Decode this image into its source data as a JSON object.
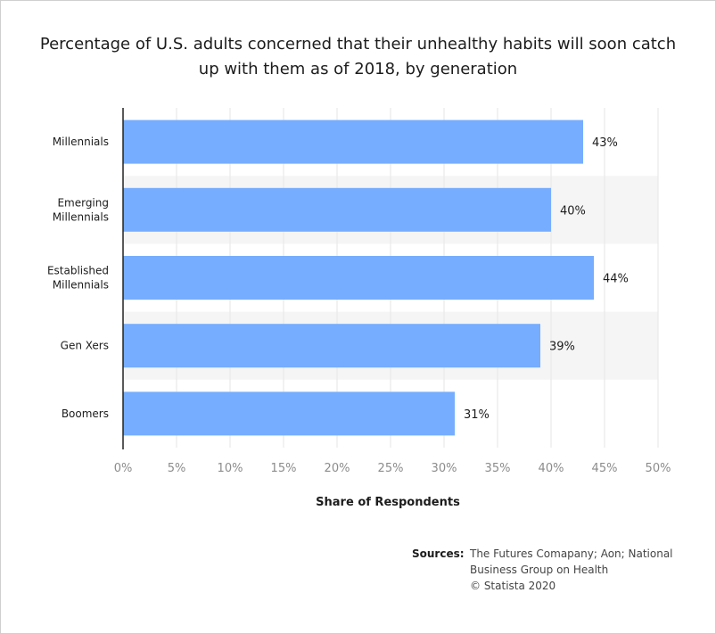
{
  "chart_data": {
    "type": "bar",
    "orientation": "horizontal",
    "title": "Percentage of U.S. adults concerned that their unhealthy habits will soon catch up with them as of 2018, by generation",
    "categories": [
      [
        "Millennials"
      ],
      [
        "Emerging",
        "Millennials"
      ],
      [
        "Established",
        "Millennials"
      ],
      [
        "Gen Xers"
      ],
      [
        "Boomers"
      ]
    ],
    "values": [
      43,
      40,
      44,
      39,
      31
    ],
    "value_labels": [
      "43%",
      "40%",
      "44%",
      "39%",
      "31%"
    ],
    "xlabel": "Share of Respondents",
    "ylabel": "",
    "xlim": [
      0,
      50
    ],
    "ticks": [
      0,
      5,
      10,
      15,
      20,
      25,
      30,
      35,
      40,
      45,
      50
    ],
    "tick_labels": [
      "0%",
      "5%",
      "10%",
      "15%",
      "20%",
      "25%",
      "30%",
      "35%",
      "40%",
      "45%",
      "50%"
    ],
    "grid": true,
    "legend": "none"
  },
  "sources": {
    "label": "Sources:",
    "lines": [
      "The Futures Comapany; Aon; National",
      "Business Group on Health",
      "© Statista 2020"
    ]
  },
  "colors": {
    "bar": "#76adff",
    "band": "#f5f5f5",
    "grid": "#e6e6e6",
    "axis": "#222222",
    "tick_label": "#8c8c8c",
    "text": "#1c1c1c"
  }
}
